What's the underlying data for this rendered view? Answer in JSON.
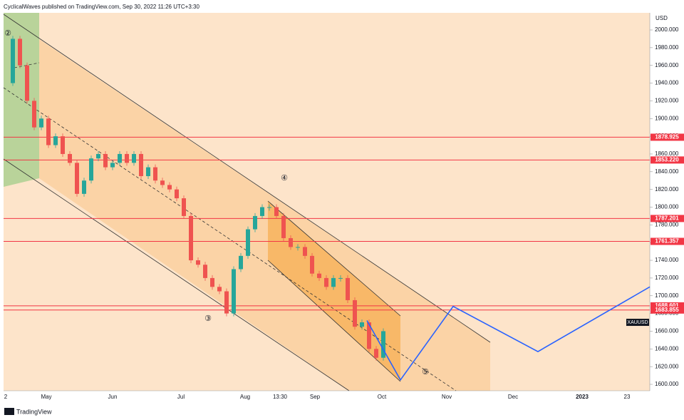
{
  "header": {
    "title": "CyclicalWaves published on TradingView.com, Sep 30, 2022 11:26 UTC+3:30"
  },
  "footer": {
    "brand": "TradingView"
  },
  "chart": {
    "currency": "USD",
    "symbol": "XAUUSD",
    "ylim": [
      1600,
      2000
    ],
    "yticks": [
      {
        "value": 2000,
        "label": "2000.000"
      },
      {
        "value": 1980,
        "label": "1980.000"
      },
      {
        "value": 1960,
        "label": "1960.000"
      },
      {
        "value": 1940,
        "label": "1940.000"
      },
      {
        "value": 1920,
        "label": "1920.000"
      },
      {
        "value": 1900,
        "label": "1900.000"
      },
      {
        "value": 1880,
        "label": "1880.000"
      },
      {
        "value": 1860,
        "label": "1860.000"
      },
      {
        "value": 1840,
        "label": "1840.000"
      },
      {
        "value": 1820,
        "label": "1820.000"
      },
      {
        "value": 1800,
        "label": "1800.000"
      },
      {
        "value": 1780,
        "label": "1780.000"
      },
      {
        "value": 1760,
        "label": "1760.000"
      },
      {
        "value": 1740,
        "label": "1740.000"
      },
      {
        "value": 1720,
        "label": "1720.000"
      },
      {
        "value": 1700,
        "label": "1700.000"
      },
      {
        "value": 1680,
        "label": "1680.000"
      },
      {
        "value": 1660,
        "label": "1660.000"
      },
      {
        "value": 1640,
        "label": "1640.000"
      },
      {
        "value": 1620,
        "label": "1620.000"
      },
      {
        "value": 1600,
        "label": "1600.000"
      }
    ],
    "time_labels": [
      "2",
      "May",
      "Jun",
      "Jul",
      "Aug",
      "13:30",
      "Sep",
      "Oct",
      "Nov",
      "Dec",
      "2023",
      "23"
    ],
    "levels": [
      1878.925,
      {
        "value": 1853.22,
        "label": "1853.220"
      },
      1787.201,
      1761.357,
      1688.601,
      1683.855
    ],
    "wave_labels": [
      "②",
      "③",
      "④",
      "⑤"
    ],
    "closes": [
      1940,
      1990,
      1960,
      1920,
      1890,
      1900,
      1870,
      1880,
      1860,
      1850,
      1815,
      1830,
      1855,
      1860,
      1845,
      1850,
      1860,
      1850,
      1860,
      1835,
      1845,
      1830,
      1825,
      1820,
      1810,
      1790,
      1740,
      1735,
      1720,
      1710,
      1705,
      1680,
      1730,
      1745,
      1775,
      1790,
      1800,
      1800,
      1790,
      1765,
      1755,
      1755,
      1745,
      1725,
      1720,
      1710,
      1720,
      1720,
      1695,
      1665,
      1670,
      1640,
      1630,
      1660
    ],
    "projection": [
      1672,
      1605,
      1688,
      1637,
      1710
    ]
  }
}
